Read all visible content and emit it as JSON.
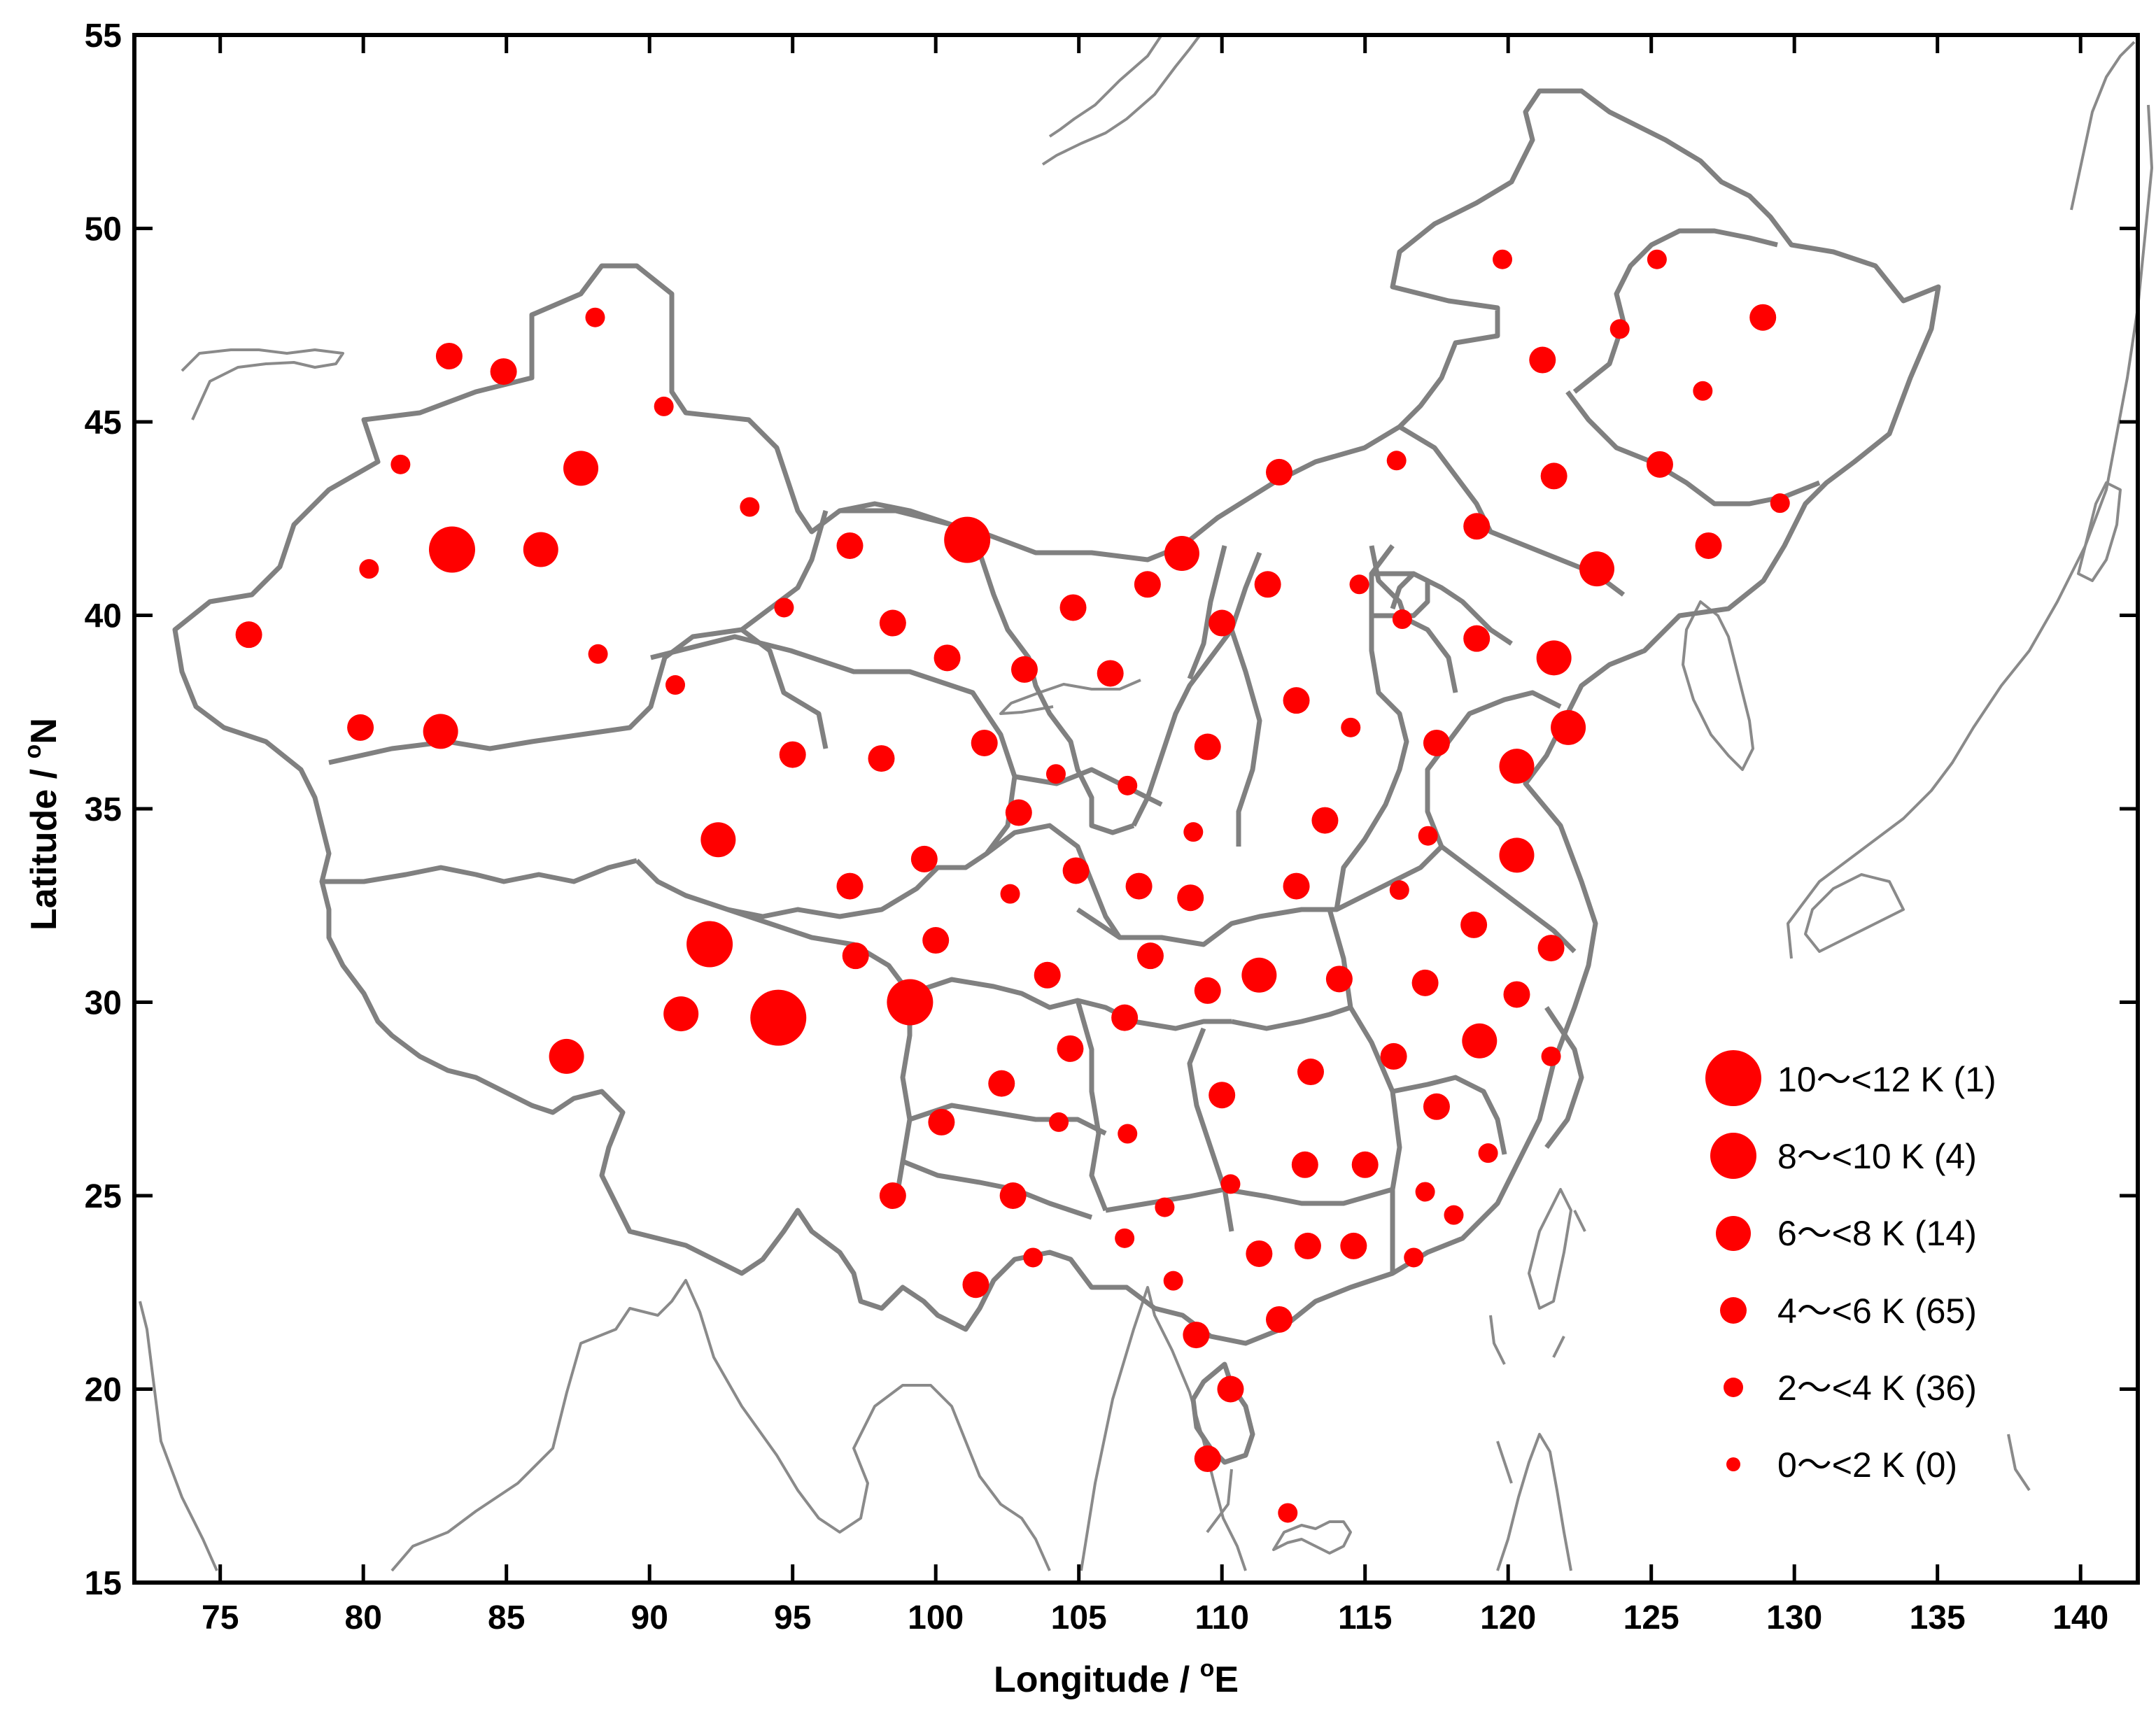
{
  "chart_data": {
    "type": "scatter",
    "xlabel_text": "Longitude / ",
    "xlabel_sup": "o",
    "xlabel_unit": "E",
    "ylabel_text": "Latitude / ",
    "ylabel_sup": "o",
    "ylabel_unit": "N",
    "xlim": [
      72,
      142
    ],
    "ylim": [
      15,
      55
    ],
    "xticks": [
      75,
      80,
      85,
      90,
      95,
      100,
      105,
      110,
      115,
      120,
      125,
      130,
      135,
      140
    ],
    "yticks": [
      15,
      20,
      25,
      30,
      35,
      40,
      45,
      50,
      55
    ],
    "marker_color": "#ff0000",
    "border_color": "#808080",
    "legend_position": "bottom-right",
    "legend": [
      {
        "label": "10～<12 K  (1)",
        "class": 5
      },
      {
        "label": "8～<10 K  (4)",
        "class": 4
      },
      {
        "label": "6～<8 K  (14)",
        "class": 3
      },
      {
        "label": "4～<6 K  (65)",
        "class": 2
      },
      {
        "label": "2～<4 K  (36)",
        "class": 1
      },
      {
        "label": "0～<2 K  (0)",
        "class": 0
      }
    ],
    "points": [
      [
        83.0,
        46.7,
        2
      ],
      [
        84.9,
        46.3,
        2
      ],
      [
        88.1,
        47.7,
        1
      ],
      [
        90.5,
        45.4,
        1
      ],
      [
        81.3,
        43.9,
        1
      ],
      [
        87.6,
        43.8,
        3
      ],
      [
        93.5,
        42.8,
        1
      ],
      [
        83.1,
        41.7,
        4
      ],
      [
        86.2,
        41.7,
        3
      ],
      [
        80.2,
        41.2,
        1
      ],
      [
        76.0,
        39.5,
        2
      ],
      [
        88.2,
        39.0,
        1
      ],
      [
        79.9,
        37.1,
        2
      ],
      [
        82.7,
        37.0,
        3
      ],
      [
        90.9,
        38.2,
        1
      ],
      [
        97.0,
        41.8,
        2
      ],
      [
        101.1,
        41.95,
        4
      ],
      [
        94.7,
        40.2,
        1
      ],
      [
        98.5,
        39.8,
        2
      ],
      [
        100.4,
        38.9,
        2
      ],
      [
        103.1,
        38.6,
        2
      ],
      [
        101.7,
        36.7,
        2
      ],
      [
        95.0,
        36.4,
        2
      ],
      [
        98.1,
        36.3,
        2
      ],
      [
        104.2,
        35.9,
        1
      ],
      [
        102.9,
        34.9,
        2
      ],
      [
        99.6,
        33.7,
        2
      ],
      [
        104.9,
        33.4,
        2
      ],
      [
        92.4,
        34.2,
        3
      ],
      [
        97.0,
        33.0,
        2
      ],
      [
        92.1,
        31.5,
        4
      ],
      [
        97.2,
        31.2,
        2
      ],
      [
        100.0,
        31.6,
        2
      ],
      [
        102.6,
        32.8,
        1
      ],
      [
        91.1,
        29.7,
        3
      ],
      [
        94.5,
        29.6,
        5
      ],
      [
        99.1,
        30.0,
        4
      ],
      [
        87.1,
        28.6,
        3
      ],
      [
        103.9,
        30.7,
        2
      ],
      [
        102.3,
        27.9,
        2
      ],
      [
        104.7,
        28.8,
        2
      ],
      [
        106.6,
        29.6,
        2
      ],
      [
        107.5,
        31.2,
        2
      ],
      [
        107.1,
        33.0,
        2
      ],
      [
        108.9,
        32.7,
        2
      ],
      [
        100.2,
        26.9,
        2
      ],
      [
        104.3,
        26.9,
        1
      ],
      [
        98.5,
        25.0,
        2
      ],
      [
        102.7,
        25.0,
        2
      ],
      [
        103.4,
        23.4,
        1
      ],
      [
        101.4,
        22.7,
        2
      ],
      [
        106.7,
        26.6,
        1
      ],
      [
        109.5,
        30.3,
        2
      ],
      [
        111.3,
        30.7,
        3
      ],
      [
        114.1,
        30.6,
        2
      ],
      [
        110.0,
        27.6,
        2
      ],
      [
        113.1,
        28.2,
        2
      ],
      [
        112.9,
        25.8,
        2
      ],
      [
        110.3,
        25.3,
        1
      ],
      [
        108.0,
        24.7,
        1
      ],
      [
        106.6,
        23.9,
        1
      ],
      [
        108.3,
        22.8,
        1
      ],
      [
        109.1,
        21.4,
        2
      ],
      [
        111.3,
        23.5,
        2
      ],
      [
        113.0,
        23.7,
        2
      ],
      [
        114.6,
        23.7,
        2
      ],
      [
        112.0,
        21.8,
        2
      ],
      [
        110.3,
        20.0,
        2
      ],
      [
        109.5,
        18.2,
        2
      ],
      [
        112.3,
        16.8,
        1
      ],
      [
        116.0,
        28.6,
        2
      ],
      [
        117.5,
        27.3,
        2
      ],
      [
        119.0,
        29.0,
        3
      ],
      [
        117.1,
        30.5,
        2
      ],
      [
        120.3,
        30.2,
        2
      ],
      [
        115.0,
        25.8,
        2
      ],
      [
        117.1,
        25.1,
        1
      ],
      [
        119.3,
        26.1,
        1
      ],
      [
        118.1,
        24.5,
        1
      ],
      [
        116.7,
        23.4,
        1
      ],
      [
        121.5,
        28.6,
        1
      ],
      [
        118.8,
        32.0,
        2
      ],
      [
        121.5,
        31.4,
        2
      ],
      [
        116.2,
        32.9,
        1
      ],
      [
        112.6,
        33.0,
        2
      ],
      [
        113.6,
        34.7,
        2
      ],
      [
        117.2,
        34.3,
        1
      ],
      [
        120.3,
        33.8,
        3
      ],
      [
        120.3,
        36.1,
        3
      ],
      [
        117.5,
        36.7,
        2
      ],
      [
        122.1,
        37.1,
        3
      ],
      [
        114.5,
        37.1,
        1
      ],
      [
        112.6,
        37.8,
        2
      ],
      [
        109.5,
        36.6,
        2
      ],
      [
        109.0,
        34.4,
        1
      ],
      [
        106.1,
        38.5,
        2
      ],
      [
        106.7,
        35.6,
        1
      ],
      [
        104.8,
        40.2,
        2
      ],
      [
        107.4,
        40.8,
        2
      ],
      [
        108.6,
        41.6,
        3
      ],
      [
        110.0,
        39.8,
        2
      ],
      [
        111.6,
        40.8,
        2
      ],
      [
        112.0,
        43.7,
        2
      ],
      [
        116.1,
        44.0,
        1
      ],
      [
        114.8,
        40.8,
        1
      ],
      [
        116.3,
        39.9,
        1
      ],
      [
        118.9,
        39.4,
        2
      ],
      [
        121.6,
        38.9,
        3
      ],
      [
        118.9,
        42.3,
        2
      ],
      [
        121.6,
        43.6,
        2
      ],
      [
        123.1,
        41.2,
        3
      ],
      [
        125.3,
        43.9,
        2
      ],
      [
        127.0,
        41.8,
        2
      ],
      [
        129.5,
        42.9,
        1
      ],
      [
        126.8,
        45.8,
        1
      ],
      [
        128.9,
        47.7,
        2
      ],
      [
        125.2,
        49.2,
        1
      ],
      [
        123.9,
        47.4,
        1
      ],
      [
        121.2,
        46.6,
        2
      ],
      [
        119.8,
        49.2,
        1
      ]
    ]
  }
}
